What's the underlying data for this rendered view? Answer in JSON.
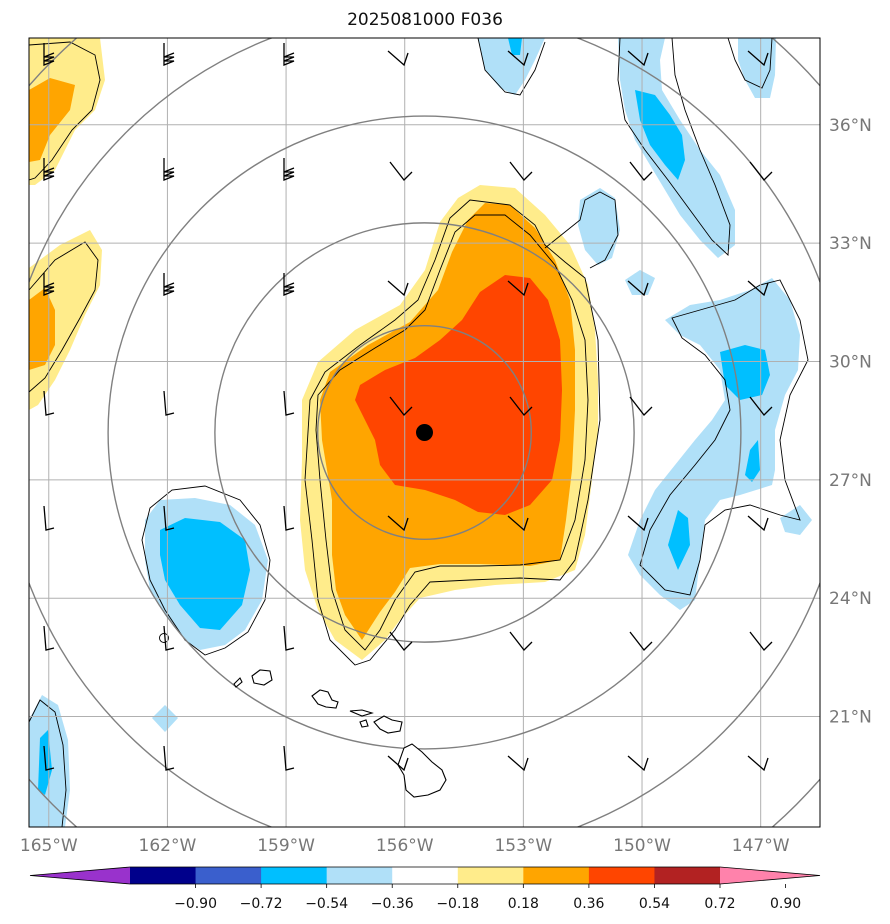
{
  "title": "2025081000 F036",
  "map": {
    "lon_range": [
      -165.5,
      -145.5
    ],
    "lat_range": [
      18.2,
      38.2
    ],
    "lon_ticks": [
      {
        "value": -165,
        "label": "165°W"
      },
      {
        "value": -162,
        "label": "162°W"
      },
      {
        "value": -159,
        "label": "159°W"
      },
      {
        "value": -156,
        "label": "156°W"
      },
      {
        "value": -153,
        "label": "153°W"
      },
      {
        "value": -150,
        "label": "150°W"
      },
      {
        "value": -147,
        "label": "147°W"
      }
    ],
    "lat_ticks": [
      {
        "value": 36,
        "label": "36°N"
      },
      {
        "value": 33,
        "label": "33°N"
      },
      {
        "value": 30,
        "label": "30°N"
      },
      {
        "value": 27,
        "label": "27°N"
      },
      {
        "value": 24,
        "label": "24°N"
      },
      {
        "value": 21,
        "label": "21°N"
      }
    ],
    "storm_center": {
      "lon": -155.5,
      "lat": 28.2
    },
    "range_ring_center": {
      "lon": -155.5,
      "lat": 28.2
    },
    "range_ring_radii_deg": [
      2.7,
      5.3,
      8.0,
      10.7,
      13.3
    ],
    "grid_color": "#b0b0b0",
    "ring_color": "#808080"
  },
  "colorbar": {
    "levels": [
      "−0.90",
      "−0.72",
      "−0.54",
      "−0.36",
      "−0.18",
      "0.18",
      "0.36",
      "0.54",
      "0.72",
      "0.90"
    ],
    "colors": [
      "#9932cc",
      "#00008b",
      "#3a5fcd",
      "#00bfff",
      "#b0e0f8",
      "#ffffff",
      "#ffec8b",
      "#ffa500",
      "#ff4500",
      "#b22222",
      "#ff82ab"
    ]
  },
  "fields": {
    "positive_colors": {
      "c1": "#ffec8b",
      "c2": "#ffa500",
      "c3": "#ff4500"
    },
    "negative_colors": {
      "c1": "#b0e0f8",
      "c2": "#00bfff"
    }
  }
}
